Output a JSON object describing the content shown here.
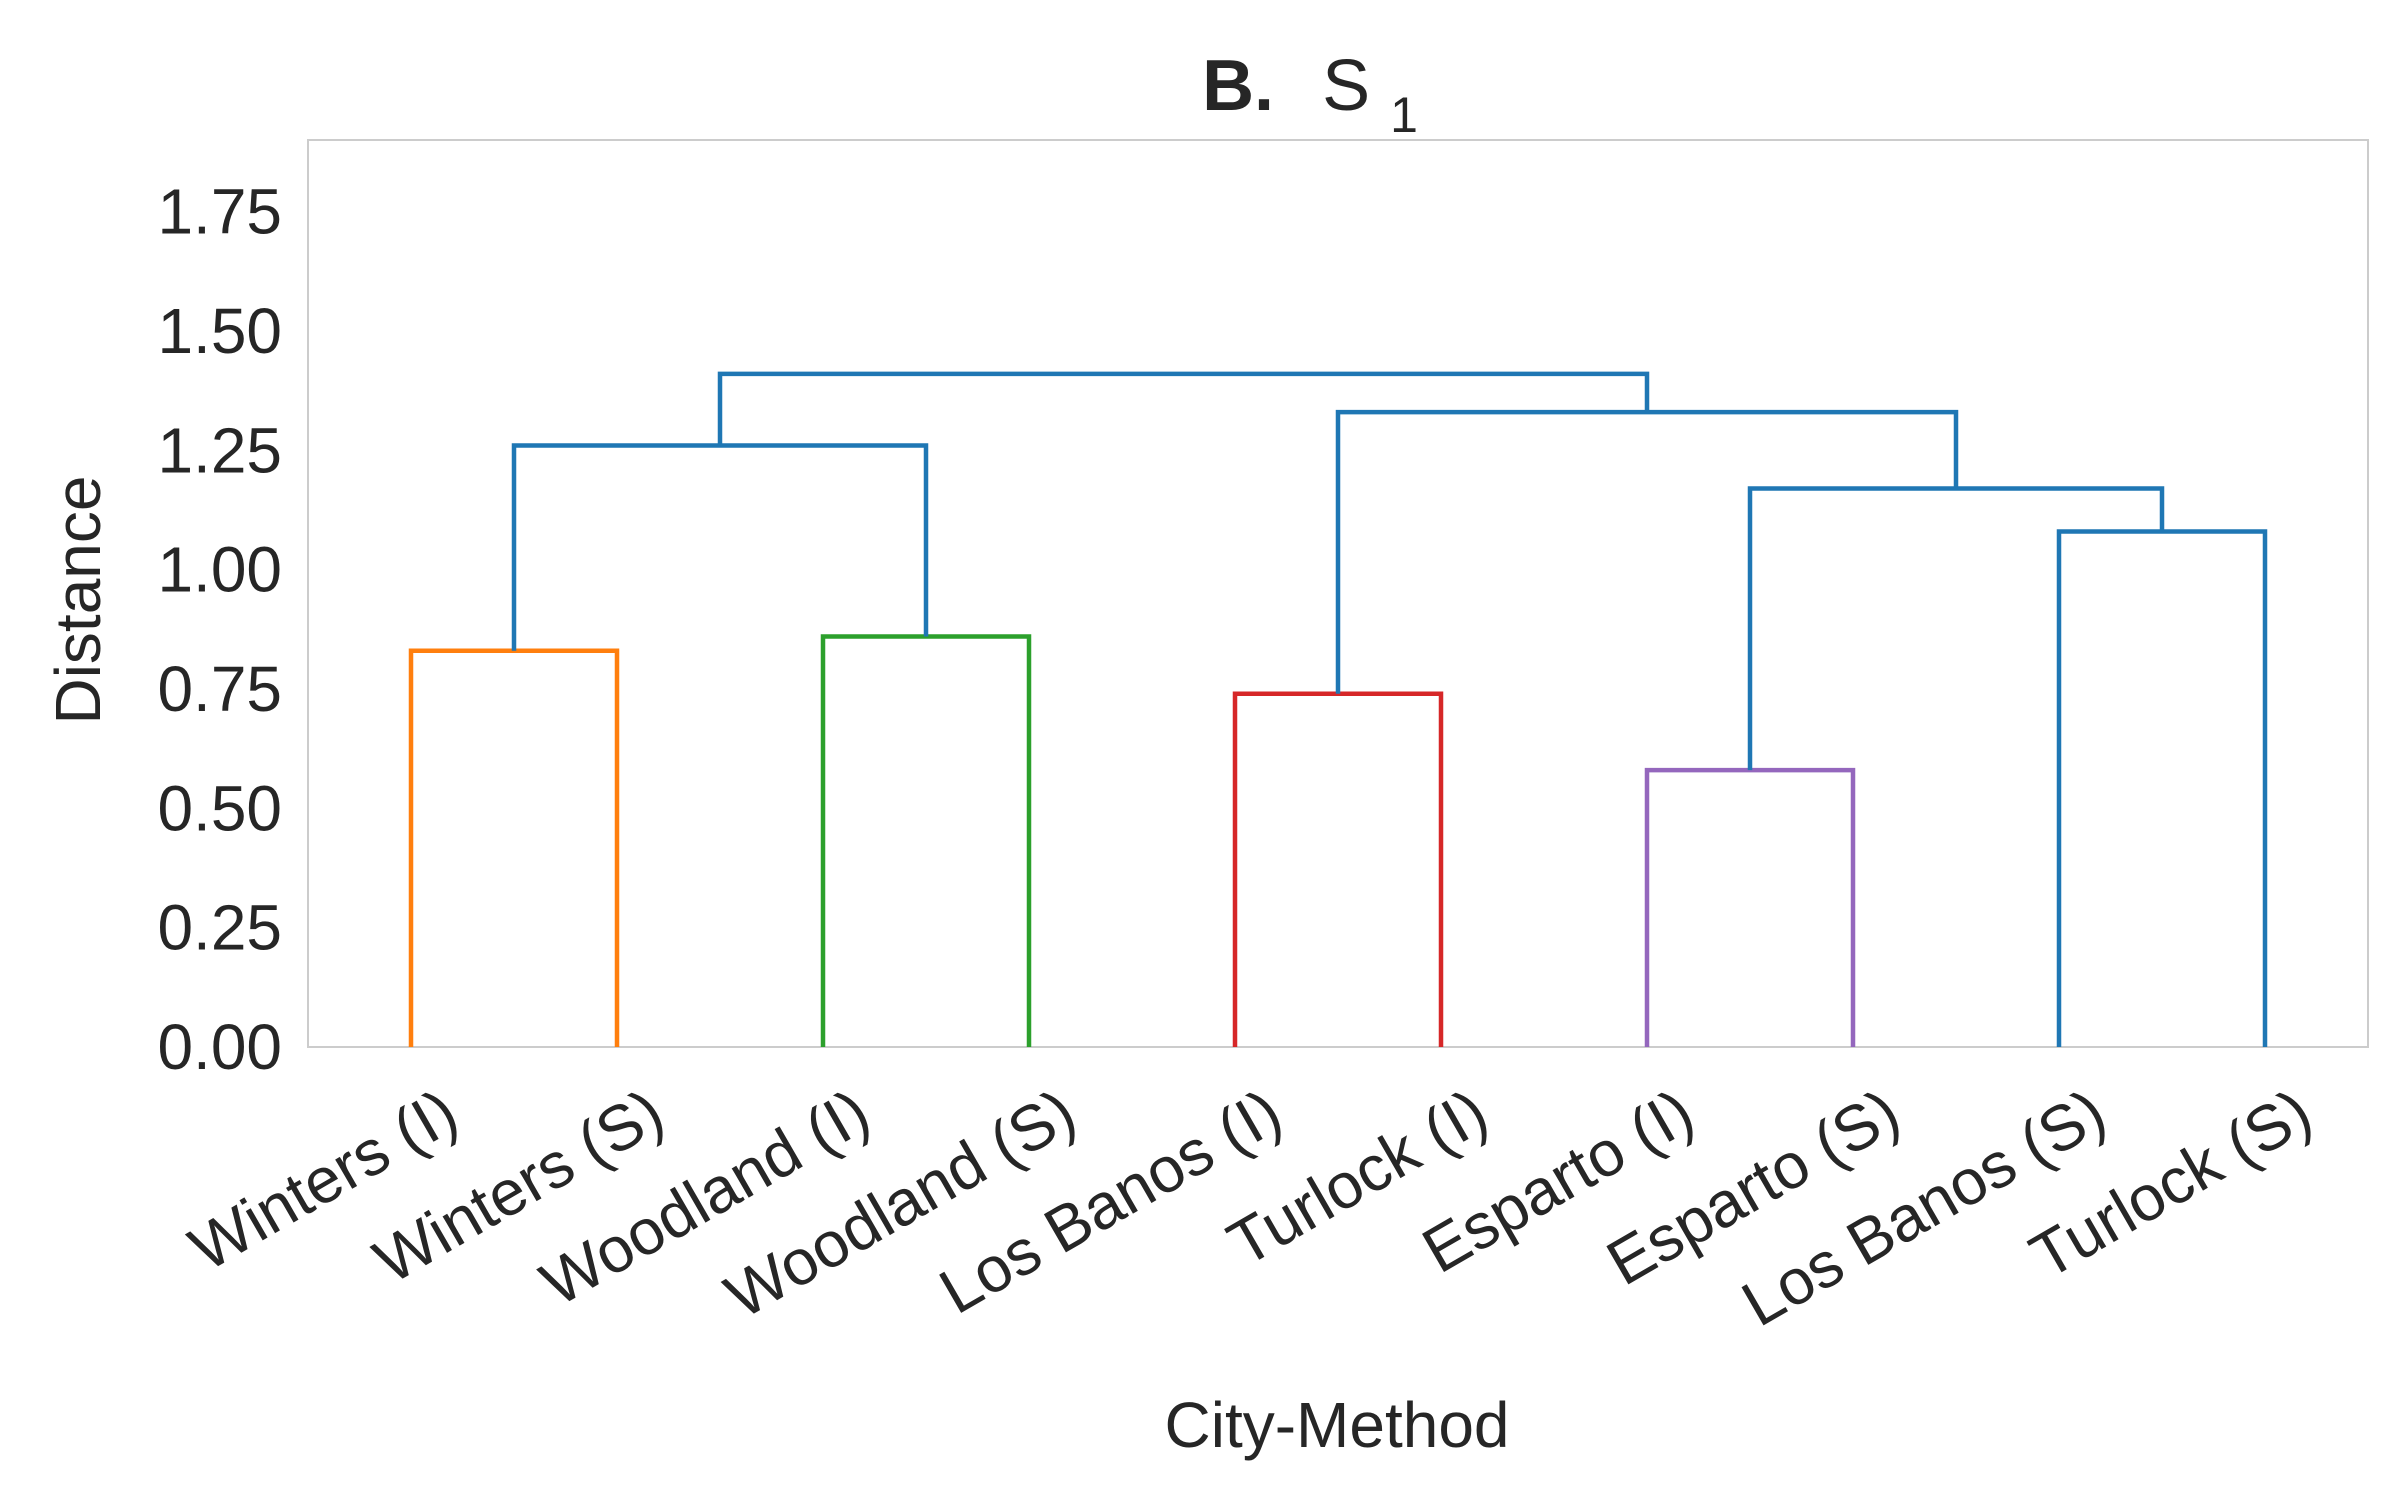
{
  "chart_data": {
    "type": "dendrogram",
    "title_prefix": "B.",
    "title_main": "S",
    "title_subscript": "1",
    "xlabel": "City-Method",
    "ylabel": "Distance",
    "ylim": [
      0,
      1.9
    ],
    "yticks": [
      "0.00",
      "0.25",
      "0.50",
      "0.75",
      "1.00",
      "1.25",
      "1.50",
      "1.75"
    ],
    "grid": false,
    "leaves": [
      "Winters (I)",
      "Winters (S)",
      "Woodland (I)",
      "Woodland (S)",
      "Los Banos (I)",
      "Turlock (I)",
      "Esparto (I)",
      "Esparto (S)",
      "Los Banos (S)",
      "Turlock (S)"
    ],
    "merges": [
      {
        "name": "winters",
        "left": 0,
        "right": 1,
        "height": 0.83,
        "color": "#ff7f0e"
      },
      {
        "name": "woodland",
        "left": 2,
        "right": 3,
        "height": 0.86,
        "color": "#2ca02c"
      },
      {
        "name": "losbanos-turlock-i",
        "left": 4,
        "right": 5,
        "height": 0.74,
        "color": "#d62728"
      },
      {
        "name": "esparto",
        "left": 6,
        "right": 7,
        "height": 0.58,
        "color": "#9467bd"
      },
      {
        "name": "losbanos-turlock-s",
        "left": 8,
        "right": 9,
        "height": 1.08,
        "color": "#1f77b4"
      },
      {
        "name": "esparto-with-s-pair",
        "left": "esparto",
        "right": "losbanos-turlock-s",
        "height": 1.17,
        "color": "#1f77b4"
      },
      {
        "name": "winters-woodland",
        "left": "winters",
        "right": "woodland",
        "height": 1.26,
        "color": "#1f77b4"
      },
      {
        "name": "right-group",
        "left": "losbanos-turlock-i",
        "right": "esparto-with-s-pair",
        "height": 1.33,
        "color": "#1f77b4"
      },
      {
        "name": "root",
        "left": "winters-woodland",
        "right": "right-group",
        "height": 1.41,
        "color": "#1f77b4"
      }
    ]
  }
}
